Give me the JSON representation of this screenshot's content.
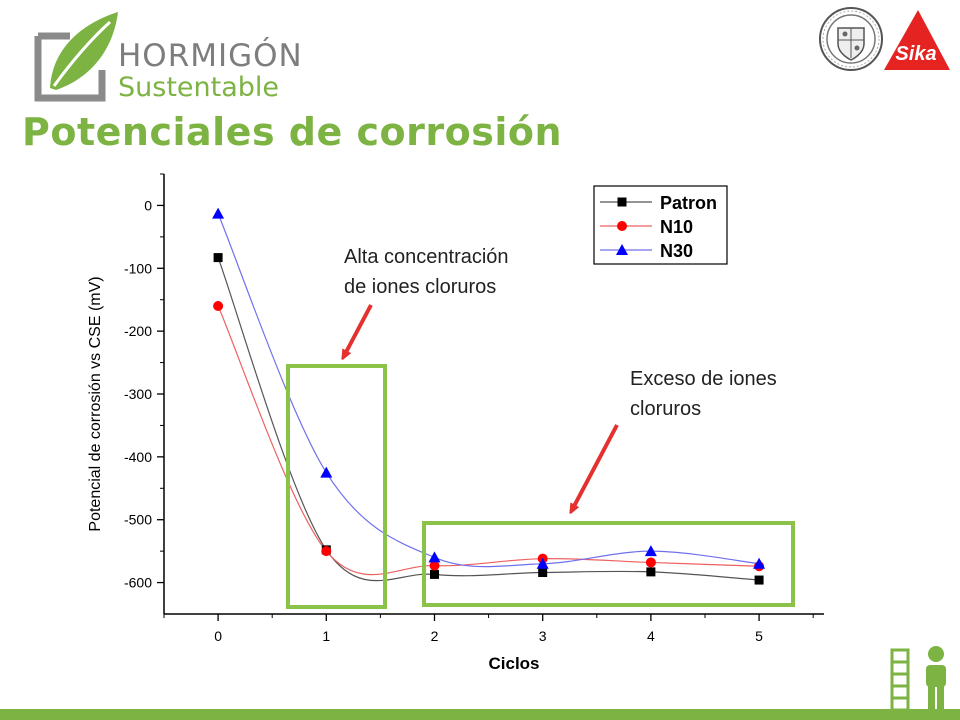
{
  "header": {
    "brand_line1": "HORMIGÓN",
    "brand_line2": "Sustentable",
    "slide_title": "Potenciales de corrosión"
  },
  "colors": {
    "brand_green": "#7cb342",
    "annotation_red": "#e53030",
    "box_green": "#8bc34a",
    "sika_red": "#e52421"
  },
  "logos": {
    "sika_label": "Sika",
    "seal_icon": "university-seal-icon",
    "footer_icon": "building-person-icon"
  },
  "annotations": [
    {
      "line1": "Alta concentración",
      "line2": "de iones cloruros"
    },
    {
      "line1": "Exceso de iones",
      "line2": "cloruros"
    }
  ],
  "chart_data": {
    "type": "scatter",
    "xlabel": "Ciclos",
    "ylabel": "Potencial de corrosión vs CSE (mV)",
    "xlim": [
      -0.5,
      5.6
    ],
    "ylim": [
      -650,
      50
    ],
    "x": [
      0,
      1,
      2,
      3,
      4,
      5
    ],
    "xticks": [
      "0",
      "1",
      "2",
      "3",
      "4",
      "5"
    ],
    "yticks": [
      "0",
      "-100",
      "-200",
      "-300",
      "-400",
      "-500",
      "-600"
    ],
    "yticks_values": [
      0,
      -100,
      -200,
      -300,
      -400,
      -500,
      -600
    ],
    "legend_position": "top-right",
    "grid": false,
    "series": [
      {
        "name": "Patron",
        "marker": "square",
        "color": "#000000",
        "line_color": "#555555",
        "values": [
          -83,
          -548,
          -587,
          -584,
          -583,
          -596
        ]
      },
      {
        "name": "N10",
        "marker": "circle",
        "color": "#ff0000",
        "line_color": "#ee6060",
        "values": [
          -160,
          -550,
          -573,
          -562,
          -568,
          -574
        ]
      },
      {
        "name": "N30",
        "marker": "triangle",
        "color": "#0000ff",
        "line_color": "#7070ee",
        "values": [
          -13,
          -425,
          -560,
          -570,
          -550,
          -570
        ]
      }
    ]
  }
}
